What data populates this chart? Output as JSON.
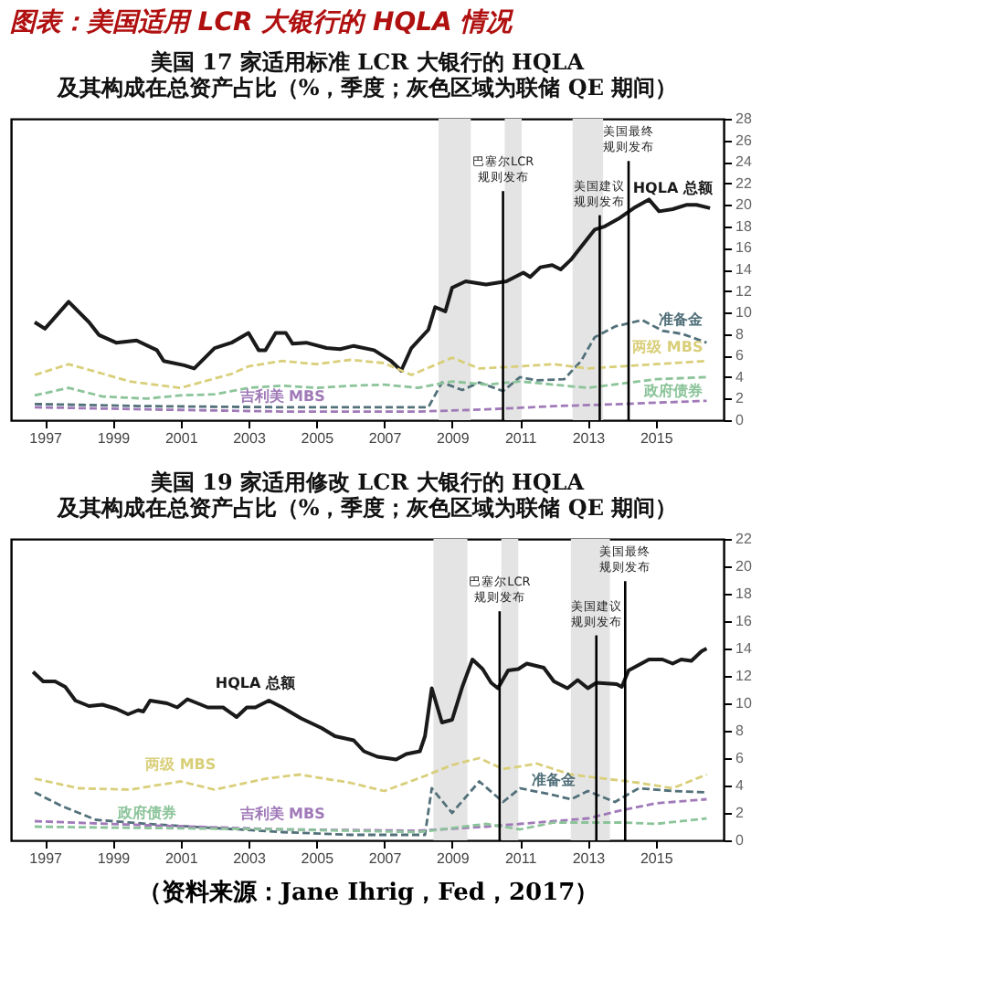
{
  "chart_data": [
    {
      "type": "line",
      "title": "图表：美国适用 LCR 大银行的 HQLA 情况",
      "subtitle": "美国 17 家适用标准 LCR 大银行的 HQLA\n及其构成在总资产占比（%，季度；灰色区域为联储 QE 期间）",
      "xlim": [
        1996,
        2017
      ],
      "xticks": [
        1997,
        1999,
        2001,
        2003,
        2005,
        2007,
        2009,
        2011,
        2013,
        2015
      ],
      "ylim": [
        0,
        28
      ],
      "yticks": [
        0,
        2,
        4,
        6,
        8,
        10,
        12,
        14,
        16,
        18,
        20,
        22,
        24,
        26,
        28
      ],
      "grid": false,
      "series": [
        {
          "name": "HQLA 总额",
          "color": "#1a1a1a",
          "line_style": "solid",
          "x": [
            1996.7,
            1997.0,
            1997.7,
            1998.3,
            1998.6,
            1999.1,
            1999.7,
            2000.3,
            2000.5,
            2001.1,
            2001.4,
            2002.0,
            2002.5,
            2003.0,
            2003.3,
            2003.5,
            2003.8,
            2004.1,
            2004.3,
            2004.7,
            2005.3,
            2005.7,
            2006.1,
            2006.7,
            2007.2,
            2007.5,
            2007.8,
            2008.3,
            2008.5,
            2008.8,
            2009.0,
            2009.4,
            2010.0,
            2010.6,
            2011.1,
            2011.3,
            2011.6,
            2011.95,
            2012.2,
            2012.5,
            2012.8,
            2013.2,
            2013.5,
            2013.9,
            2014.4,
            2014.8,
            2015.1,
            2015.5,
            2015.9,
            2016.2,
            2016.6
          ],
          "values": [
            9.1,
            8.5,
            11.0,
            9.1,
            7.9,
            7.2,
            7.4,
            6.5,
            5.5,
            5.1,
            4.8,
            6.7,
            7.2,
            8.1,
            6.5,
            6.5,
            8.1,
            8.1,
            7.1,
            7.2,
            6.7,
            6.6,
            6.9,
            6.5,
            5.5,
            4.6,
            6.7,
            8.4,
            10.5,
            10.1,
            12.3,
            12.9,
            12.6,
            12.9,
            13.7,
            13.3,
            14.2,
            14.4,
            14.0,
            14.9,
            16.1,
            17.7,
            18.0,
            18.7,
            19.8,
            20.5,
            19.4,
            19.6,
            20.0,
            20.0,
            19.7
          ]
        },
        {
          "name": "准备金",
          "color": "#52707a",
          "line_style": "dashed",
          "x": [
            1996.7,
            2000,
            2004,
            2008.3,
            2008.7,
            2009.3,
            2009.8,
            2010.5,
            2011.0,
            2011.5,
            2012.3,
            2012.8,
            2013.2,
            2013.8,
            2014.6,
            2015.2,
            2015.8,
            2016.5
          ],
          "values": [
            1.5,
            1.3,
            1.2,
            1.2,
            3.5,
            2.8,
            3.5,
            2.7,
            4.0,
            3.7,
            3.8,
            5.5,
            7.7,
            8.7,
            9.3,
            8.3,
            8.0,
            7.2
          ]
        },
        {
          "name": "两级 MBS",
          "color": "#d9cf7a",
          "line_style": "dashed",
          "x": [
            1996.7,
            1997.7,
            1998.5,
            1999.5,
            2001,
            2002.5,
            2003,
            2004,
            2005,
            2006,
            2007,
            2007.8,
            2009,
            2009.8,
            2011,
            2012,
            2013,
            2014,
            2015,
            2016.5
          ],
          "values": [
            4.2,
            5.2,
            4.5,
            3.6,
            3.0,
            4.3,
            5.0,
            5.5,
            5.2,
            5.6,
            5.3,
            4.2,
            5.8,
            4.8,
            5.0,
            5.2,
            4.8,
            5.0,
            5.2,
            5.5
          ]
        },
        {
          "name": "政府债券",
          "color": "#8cc49a",
          "line_style": "dashed",
          "x": [
            1996.7,
            1997.7,
            1998.7,
            2000,
            2001,
            2002,
            2003,
            2004,
            2005,
            2006,
            2007,
            2008,
            2009,
            2010,
            2011,
            2012,
            2013,
            2014,
            2015,
            2016.5
          ],
          "values": [
            2.3,
            3.0,
            2.2,
            2.0,
            2.3,
            2.4,
            3.0,
            3.2,
            3.0,
            3.2,
            3.3,
            3.0,
            3.6,
            3.3,
            3.6,
            3.3,
            3.0,
            3.4,
            3.8,
            4.0
          ]
        },
        {
          "name": "吉利美 MBS",
          "color": "#a07ab8",
          "line_style": "dashed",
          "x": [
            1996.7,
            2000,
            2004,
            2008,
            2010,
            2012,
            2014,
            2016.5
          ],
          "values": [
            1.2,
            1.0,
            0.8,
            0.8,
            1.0,
            1.3,
            1.5,
            1.8
          ]
        }
      ],
      "bands": [
        {
          "axis": "x",
          "from": 2008.6,
          "to": 2009.55,
          "color": "#e4e4e4"
        },
        {
          "axis": "x",
          "from": 2010.55,
          "to": 2011.05,
          "color": "#e4e4e4"
        },
        {
          "axis": "x",
          "from": 2012.55,
          "to": 2013.45,
          "color": "#e4e4e4"
        }
      ],
      "ref_lines": [
        {
          "axis": "x",
          "value": 2010.5,
          "label": "巴塞尔LCR规则发布",
          "color": "#000000"
        },
        {
          "axis": "x",
          "value": 2013.35,
          "label": "美国建议规则发布",
          "color": "#000000"
        },
        {
          "axis": "x",
          "value": 2014.2,
          "label": "美国最终规则发布",
          "color": "#000000"
        }
      ]
    },
    {
      "type": "line",
      "title": "美国 19 家适用修改 LCR 大银行的 HQLA\n及其构成在总资产占比（%，季度；灰色区域为联储 QE 期间）",
      "annotations": [
        "（资料来源：Jane Ihrig，Fed，2017）"
      ],
      "xlim": [
        1996,
        2017
      ],
      "xticks": [
        1997,
        1999,
        2001,
        2003,
        2005,
        2007,
        2009,
        2011,
        2013,
        2015
      ],
      "ylim": [
        0,
        22
      ],
      "yticks": [
        0,
        2,
        4,
        6,
        8,
        10,
        12,
        14,
        16,
        18,
        20,
        22
      ],
      "grid": false,
      "series": [
        {
          "name": "HQLA 总额",
          "color": "#1a1a1a",
          "line_style": "solid",
          "x": [
            1996.65,
            1996.95,
            1997.3,
            1997.6,
            1997.9,
            1998.3,
            1998.7,
            1999.1,
            1999.45,
            1999.75,
            1999.9,
            2000.1,
            2000.6,
            2000.9,
            2001.2,
            2001.5,
            2001.8,
            2002.25,
            2002.65,
            2002.95,
            2003.2,
            2003.6,
            2004.0,
            2004.55,
            2005.15,
            2005.55,
            2006.1,
            2006.4,
            2006.8,
            2007.35,
            2007.65,
            2008.05,
            2008.2,
            2008.4,
            2008.7,
            2009.0,
            2009.3,
            2009.6,
            2009.9,
            2010.15,
            2010.35,
            2010.65,
            2010.95,
            2011.2,
            2011.7,
            2012.0,
            2012.4,
            2012.7,
            2013.0,
            2013.25,
            2013.85,
            2014.0,
            2014.2,
            2014.5,
            2014.8,
            2015.2,
            2015.5,
            2015.75,
            2016.05,
            2016.35,
            2016.5
          ],
          "values": [
            12.3,
            11.6,
            11.6,
            11.2,
            10.2,
            9.8,
            9.9,
            9.6,
            9.2,
            9.5,
            9.4,
            10.2,
            10.0,
            9.7,
            10.3,
            10.0,
            9.7,
            9.7,
            9.0,
            9.7,
            9.7,
            10.2,
            9.7,
            8.9,
            8.2,
            7.6,
            7.3,
            6.5,
            6.1,
            5.9,
            6.3,
            6.5,
            7.6,
            11.1,
            8.6,
            8.8,
            11.2,
            13.2,
            12.5,
            11.5,
            11.1,
            12.4,
            12.5,
            12.9,
            12.6,
            11.6,
            11.1,
            11.7,
            11.1,
            11.5,
            11.4,
            11.2,
            12.4,
            12.8,
            13.2,
            13.2,
            12.9,
            13.2,
            13.1,
            13.8,
            14.0
          ]
        },
        {
          "name": "两级 MBS",
          "color": "#d9cf7a",
          "line_style": "dashed",
          "x": [
            1996.7,
            1998,
            1999.5,
            2001,
            2002,
            2003.5,
            2004.5,
            2006,
            2007,
            2008.2,
            2009,
            2009.8,
            2010.5,
            2011.5,
            2012.5,
            2013.5,
            2014.5,
            2015.5,
            2016.5
          ],
          "values": [
            4.5,
            3.8,
            3.7,
            4.3,
            3.7,
            4.5,
            4.8,
            4.2,
            3.6,
            4.7,
            5.5,
            6.0,
            5.2,
            5.6,
            4.8,
            4.5,
            4.2,
            3.8,
            4.8
          ]
        },
        {
          "name": "准备金",
          "color": "#52707a",
          "line_style": "dashed",
          "x": [
            1996.7,
            1997.5,
            1998.5,
            2000,
            2002,
            2004,
            2006,
            2008.2,
            2008.4,
            2009,
            2009.8,
            2010.5,
            2011,
            2012,
            2012.5,
            2013,
            2013.8,
            2014.5,
            2015.5,
            2016.5
          ],
          "values": [
            3.5,
            2.5,
            1.5,
            1.2,
            0.9,
            0.6,
            0.4,
            0.4,
            3.8,
            2.0,
            4.3,
            2.8,
            3.8,
            3.3,
            3.0,
            3.6,
            2.8,
            3.8,
            3.6,
            3.5
          ]
        },
        {
          "name": "吉利美 MBS",
          "color": "#a07ab8",
          "line_style": "dashed",
          "x": [
            1996.7,
            2000,
            2004,
            2008,
            2010,
            2011,
            2012,
            2013,
            2014,
            2015,
            2016.5
          ],
          "values": [
            1.4,
            1.1,
            0.8,
            0.7,
            1.0,
            1.2,
            1.4,
            1.6,
            2.2,
            2.7,
            3.0
          ]
        },
        {
          "name": "政府债券",
          "color": "#8cc49a",
          "line_style": "dashed",
          "x": [
            1996.7,
            2000,
            2004,
            2008,
            2010,
            2011,
            2012,
            2014,
            2015,
            2016.5
          ],
          "values": [
            1.0,
            0.9,
            0.8,
            0.6,
            1.2,
            0.8,
            1.3,
            1.3,
            1.2,
            1.6
          ]
        }
      ],
      "bands": [
        {
          "axis": "x",
          "from": 2008.45,
          "to": 2009.45,
          "color": "#e4e4e4"
        },
        {
          "axis": "x",
          "from": 2010.45,
          "to": 2010.95,
          "color": "#e4e4e4"
        },
        {
          "axis": "x",
          "from": 2012.5,
          "to": 2013.65,
          "color": "#e4e4e4"
        }
      ],
      "ref_lines": [
        {
          "axis": "x",
          "value": 2010.4,
          "label": "巴塞尔LCR规则发布",
          "color": "#000000"
        },
        {
          "axis": "x",
          "value": 2013.25,
          "label": "美国建议规则发布",
          "color": "#000000"
        },
        {
          "axis": "x",
          "value": 2014.1,
          "label": "美国最终规则发布",
          "color": "#000000"
        }
      ]
    }
  ]
}
